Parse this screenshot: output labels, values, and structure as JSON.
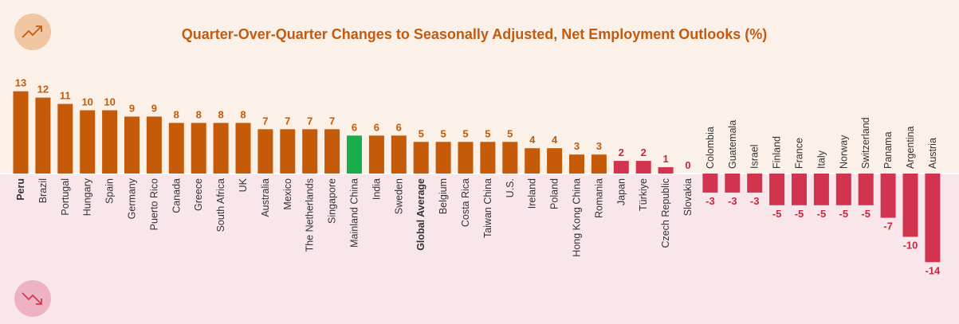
{
  "chart_data": {
    "type": "bar",
    "title": "Quarter-Over-Quarter Changes to Seasonally Adjusted, Net Employment Outlooks (%)",
    "xlabel": "",
    "ylabel": "",
    "legend": "none",
    "grid": false,
    "categories": [
      "Peru",
      "Brazil",
      "Portugal",
      "Hungary",
      "Spain",
      "Germany",
      "Puerto Rico",
      "Canada",
      "Greece",
      "South Africa",
      "UK",
      "Australia",
      "Mexico",
      "The Netherlands",
      "Singapore",
      "Mainland China",
      "India",
      "Sweden",
      "Global Average",
      "Belgium",
      "Costa Rica",
      "Taiwan China",
      "U.S.",
      "Ireland",
      "Poland",
      "Hong Kong China",
      "Romania",
      "Japan",
      "Türkiye",
      "Czech Republic",
      "Slovakia",
      "Colombia",
      "Guatemala",
      "Israel",
      "Finland",
      "France",
      "Italy",
      "Norway",
      "Switzerland",
      "Panama",
      "Argentina",
      "Austria"
    ],
    "values": [
      13,
      12,
      11,
      10,
      10,
      9,
      9,
      8,
      8,
      8,
      8,
      7,
      7,
      7,
      7,
      6,
      6,
      6,
      5,
      5,
      5,
      5,
      5,
      4,
      4,
      3,
      3,
      2,
      2,
      1,
      0,
      -3,
      -3,
      -3,
      -5,
      -5,
      -5,
      -5,
      -5,
      -7,
      -10,
      -14
    ],
    "bold_categories": [
      "Peru",
      "Global Average"
    ],
    "highlight_category": "Mainland China",
    "colors": {
      "orange": "#c55a08",
      "highlight": "#1aad4b",
      "pink": "#d2344f",
      "label_orange": "#c55a08",
      "label_pink": "#c8283f"
    }
  },
  "icons": {
    "up": "trend-up-icon",
    "down": "trend-down-icon"
  }
}
